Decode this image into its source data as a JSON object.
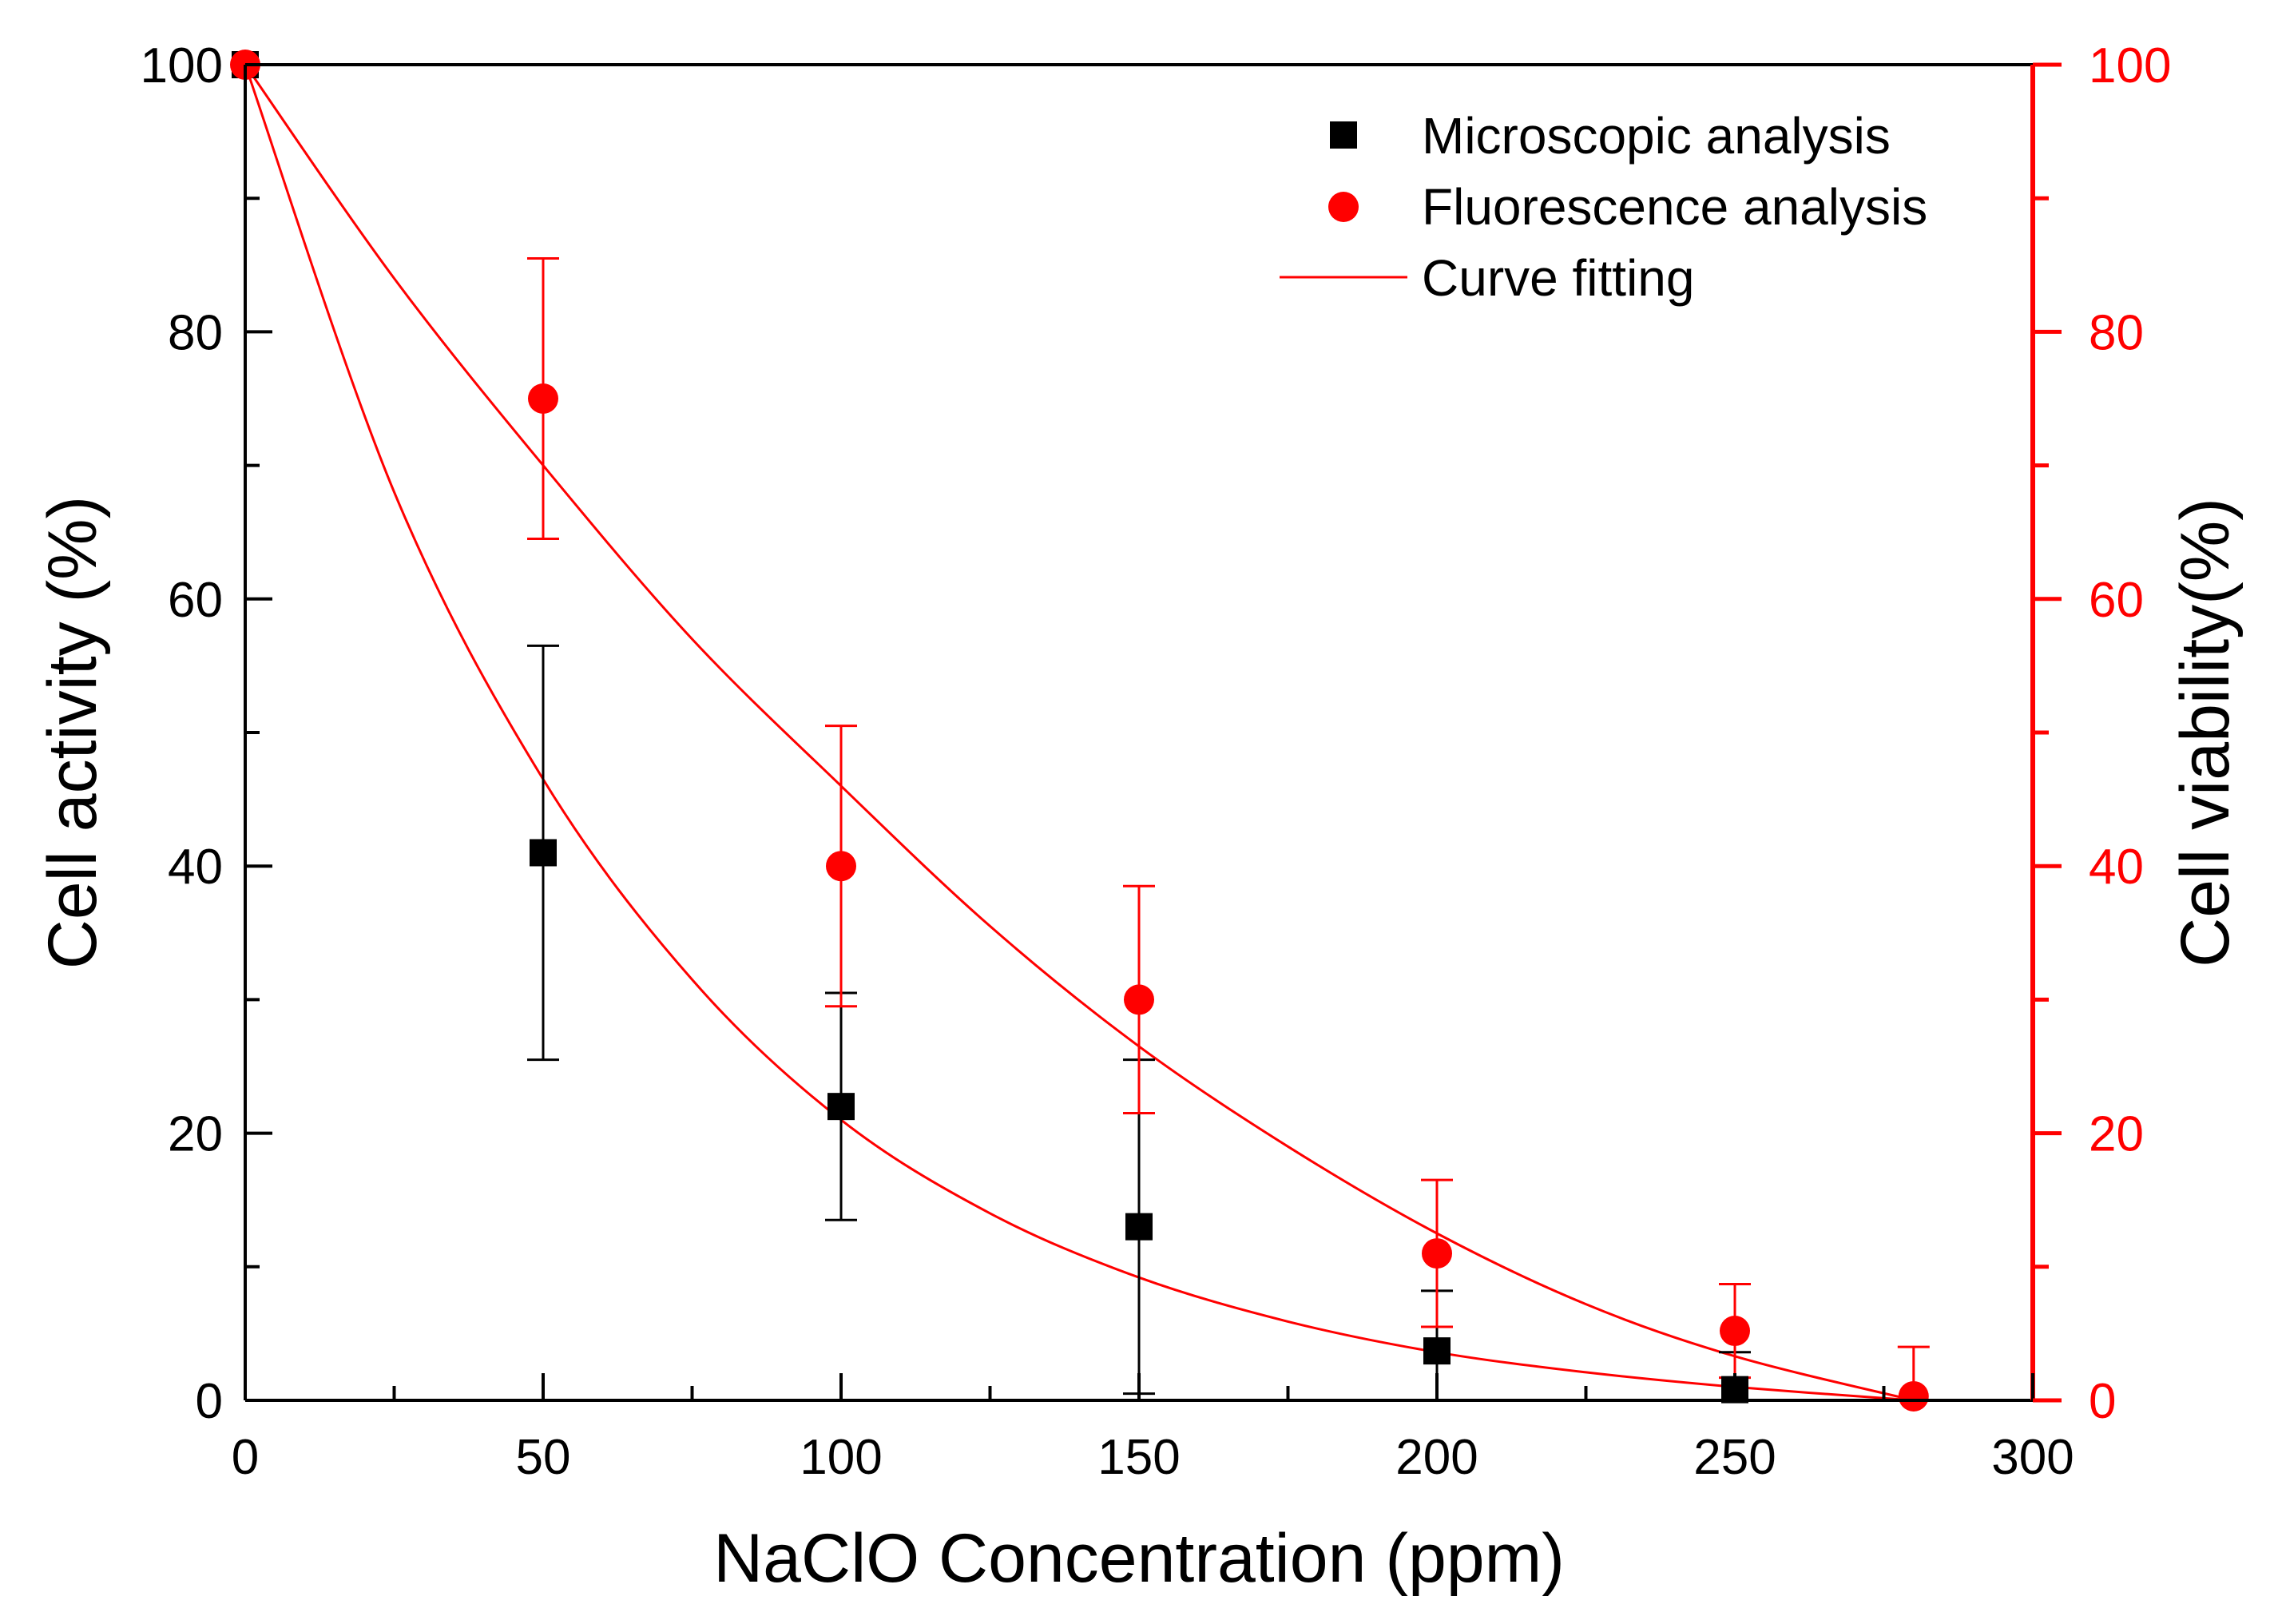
{
  "chart_data": {
    "type": "scatter",
    "title": "",
    "xlabel": "NaClO Concentration (ppm)",
    "ylabel_left": "Cell activity (%)",
    "ylabel_right": "Cell viability(%)",
    "xlim": [
      0,
      300
    ],
    "ylim_left": [
      0,
      100
    ],
    "ylim_right": [
      0,
      100
    ],
    "x_ticks": [
      "0",
      "50",
      "100",
      "150",
      "200",
      "250",
      "300"
    ],
    "y_left_ticks": [
      "0",
      "20",
      "40",
      "60",
      "80",
      "100"
    ],
    "y_right_ticks": [
      "0",
      "20",
      "40",
      "60",
      "80",
      "100"
    ],
    "grid": false,
    "legend_position": "top-right",
    "colors": {
      "microscopic": "#000000",
      "fluorescence": "#ff0000",
      "fit": "#ff0000",
      "right_axis": "#ff0000"
    },
    "series": [
      {
        "name": "Microscopic analysis",
        "marker": "square",
        "axis": "left",
        "x": [
          0,
          50,
          100,
          150,
          200,
          250
        ],
        "y": [
          100,
          41,
          22,
          13,
          3.7,
          0.8
        ],
        "err": [
          0,
          15.5,
          8.5,
          12.5,
          4.5,
          2.8
        ]
      },
      {
        "name": "Fluorescence analysis",
        "marker": "circle",
        "axis": "right",
        "x": [
          0,
          50,
          100,
          150,
          200,
          250,
          280
        ],
        "y": [
          100,
          75,
          40,
          30,
          11,
          5.2,
          0.3
        ],
        "err": [
          0,
          10.5,
          10.5,
          8.5,
          5.5,
          3.5,
          3.7
        ]
      }
    ],
    "fits": [
      {
        "name": "Curve fitting",
        "applies_to": "Microscopic analysis",
        "x": [
          0,
          25,
          50,
          75,
          100,
          125,
          150,
          175,
          200,
          225,
          250,
          280
        ],
        "y": [
          100,
          68,
          46.5,
          31.5,
          21,
          14,
          9.2,
          5.9,
          3.6,
          2.1,
          1.0,
          0
        ]
      },
      {
        "name": "Curve fitting",
        "applies_to": "Fluorescence analysis",
        "x": [
          0,
          25,
          50,
          75,
          100,
          125,
          150,
          175,
          200,
          225,
          250,
          280
        ],
        "y": [
          100,
          84,
          70,
          57,
          46,
          35.5,
          26.5,
          19,
          12.5,
          7.2,
          3.3,
          0
        ]
      }
    ],
    "legend": [
      {
        "label": "Microscopic analysis",
        "marker": "square"
      },
      {
        "label": "Fluorescence analysis",
        "marker": "circle"
      },
      {
        "label": "Curve fitting",
        "marker": "line"
      }
    ]
  }
}
